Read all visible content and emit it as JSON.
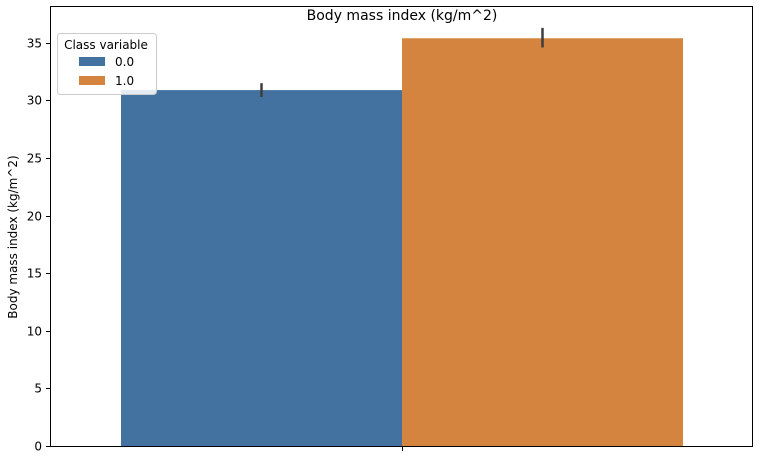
{
  "chart_data": {
    "type": "bar",
    "title": "Body mass index (kg/m^2)",
    "xlabel": "",
    "ylabel": "Body mass index (kg/m^2)",
    "ylim": [
      0,
      38.2
    ],
    "yticks": [
      0,
      5,
      10,
      15,
      20,
      25,
      30,
      35
    ],
    "grid": false,
    "legend": {
      "title": "Class variable",
      "placement": "top-left"
    },
    "series": [
      {
        "name": "0.0",
        "color": "#4472a0",
        "value": 30.9,
        "error": [
          30.3,
          31.5
        ]
      },
      {
        "name": "1.0",
        "color": "#d4843e",
        "value": 35.4,
        "error": [
          34.6,
          36.3
        ]
      }
    ]
  }
}
